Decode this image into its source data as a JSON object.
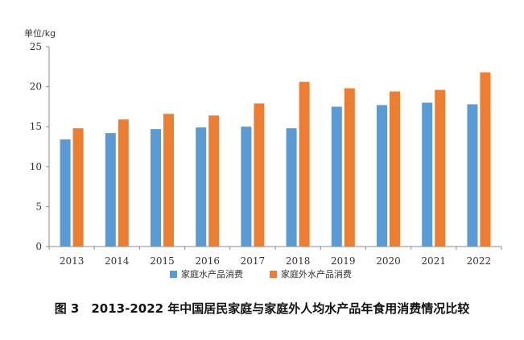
{
  "caption": "图 3　2013-2022 年中国居民家庭与家庭外人均水产品年食用消费情况比较",
  "chart_data": {
    "type": "bar",
    "title": "",
    "ylabel": "单位/kg",
    "xlabel": "",
    "categories": [
      "2013",
      "2014",
      "2015",
      "2016",
      "2017",
      "2018",
      "2019",
      "2020",
      "2021",
      "2022"
    ],
    "series": [
      {
        "name": "家庭水产品消费",
        "color": "#5b9bd5",
        "values": [
          13.4,
          14.2,
          14.7,
          14.9,
          15.0,
          14.8,
          17.5,
          17.7,
          18.0,
          17.8
        ]
      },
      {
        "name": "家庭外水产品消费",
        "color": "#ed7d31",
        "values": [
          14.8,
          15.9,
          16.6,
          16.4,
          17.9,
          20.6,
          19.8,
          19.4,
          19.6,
          21.8
        ]
      }
    ],
    "ylim": [
      0,
      25
    ],
    "yticks": [
      0,
      5,
      10,
      15,
      20,
      25
    ],
    "grid": false,
    "legend_position": "bottom"
  }
}
